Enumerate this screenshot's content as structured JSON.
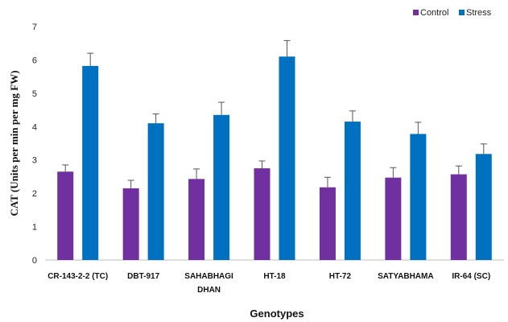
{
  "chart_data": {
    "type": "bar",
    "categories": [
      [
        "CR-143-2-2 (TC)"
      ],
      [
        "DBT-917"
      ],
      [
        "SAHABHAGI",
        "DHAN"
      ],
      [
        "HT-18"
      ],
      [
        "HT-72"
      ],
      [
        "SATYABHAMA"
      ],
      [
        "IR-64 (SC)"
      ]
    ],
    "series": [
      {
        "name": "Control",
        "color": "#7030a0",
        "values": [
          2.65,
          2.15,
          2.43,
          2.75,
          2.18,
          2.47,
          2.57
        ],
        "errors": [
          0.2,
          0.24,
          0.3,
          0.22,
          0.3,
          0.3,
          0.25
        ]
      },
      {
        "name": "Stress",
        "color": "#0070c0",
        "values": [
          5.82,
          4.1,
          4.35,
          6.1,
          4.15,
          3.78,
          3.18
        ],
        "errors": [
          0.38,
          0.28,
          0.38,
          0.48,
          0.32,
          0.35,
          0.3
        ]
      }
    ],
    "xlabel": "Genotypes",
    "ylabel": "CAT (Units per min per mg FW)",
    "ylim": [
      0,
      7
    ],
    "yticks": [
      0,
      1,
      2,
      3,
      4,
      5,
      6,
      7
    ],
    "legend_position": "top-right",
    "grid": false
  }
}
